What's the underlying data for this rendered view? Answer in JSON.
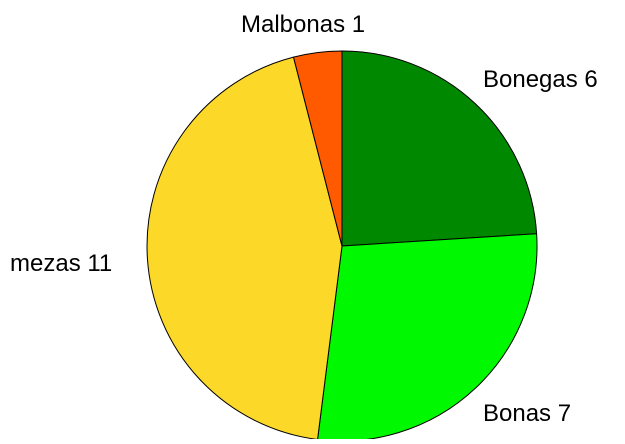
{
  "chart_data": {
    "type": "pie",
    "title": "",
    "start_angle_deg": 0,
    "direction": "clockwise",
    "slices": [
      {
        "label": "Bonegas",
        "value": 6,
        "display": "Bonegas 6",
        "color": "#008800"
      },
      {
        "label": "Bonas",
        "value": 7,
        "display": "Bonas 7",
        "color": "#00f800"
      },
      {
        "label": "mezas",
        "value": 11,
        "display": "mezas 11",
        "color": "#fcd829"
      },
      {
        "label": "Malbonas",
        "value": 1,
        "display": "Malbonas 1",
        "color": "#ff5a00"
      }
    ]
  }
}
